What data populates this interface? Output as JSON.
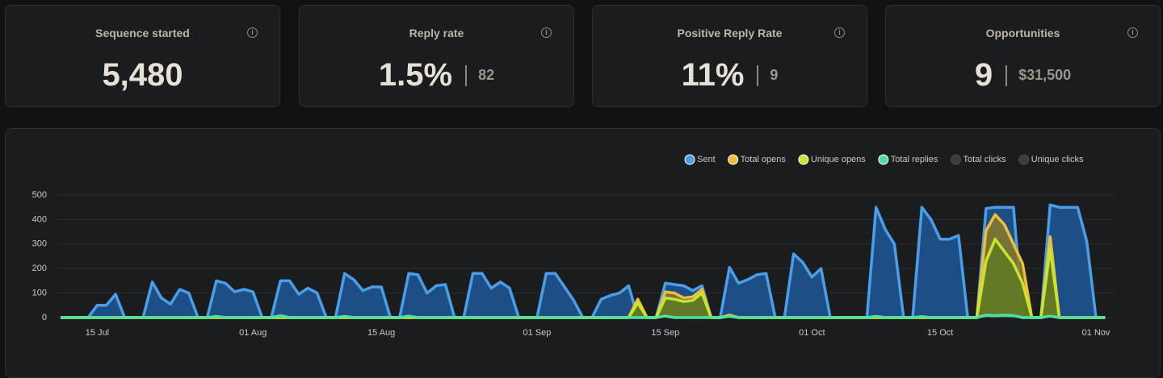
{
  "cards": [
    {
      "title": "Sequence started",
      "value": "5,480"
    },
    {
      "title": "Reply rate",
      "value": "1.5%",
      "secondary": "82"
    },
    {
      "title": "Positive Reply Rate",
      "value": "11%",
      "secondary": "9"
    },
    {
      "title": "Opportunities",
      "value": "9",
      "secondary": "$31,500"
    }
  ],
  "chart_data": {
    "type": "area",
    "categories": [
      null,
      null,
      null,
      null,
      "15 Jul",
      null,
      null,
      null,
      null,
      null,
      null,
      null,
      null,
      null,
      null,
      null,
      null,
      null,
      null,
      null,
      null,
      "01 Aug",
      null,
      null,
      null,
      null,
      null,
      null,
      null,
      null,
      null,
      null,
      null,
      null,
      null,
      "15 Aug",
      null,
      null,
      null,
      null,
      null,
      null,
      null,
      null,
      null,
      null,
      null,
      null,
      null,
      null,
      null,
      null,
      "01 Sep",
      null,
      null,
      null,
      null,
      null,
      null,
      null,
      null,
      null,
      null,
      null,
      null,
      null,
      "15 Sep",
      null,
      null,
      null,
      null,
      null,
      null,
      null,
      null,
      null,
      null,
      null,
      null,
      null,
      null,
      null,
      "01 Oct",
      null,
      null,
      null,
      null,
      null,
      null,
      null,
      null,
      null,
      null,
      null,
      null,
      null,
      "15 Oct",
      null,
      null,
      null,
      null,
      null,
      null,
      null,
      null,
      null,
      null,
      null,
      null,
      null,
      null,
      null,
      null,
      "01 Nov",
      null
    ],
    "series": [
      {
        "name": "Sent",
        "color": "#4a9ee8",
        "fill_color": "#1f5799",
        "values": [
          0,
          0,
          0,
          0,
          50,
          50,
          95,
          0,
          0,
          0,
          145,
          80,
          55,
          115,
          100,
          0,
          0,
          150,
          140,
          105,
          115,
          105,
          0,
          0,
          150,
          150,
          95,
          120,
          100,
          0,
          0,
          180,
          155,
          110,
          125,
          125,
          0,
          0,
          180,
          175,
          100,
          130,
          135,
          0,
          0,
          180,
          180,
          120,
          145,
          120,
          0,
          0,
          0,
          180,
          180,
          125,
          70,
          0,
          0,
          75,
          90,
          100,
          130,
          0,
          0,
          0,
          140,
          135,
          130,
          110,
          130,
          0,
          0,
          205,
          140,
          155,
          175,
          180,
          0,
          0,
          260,
          225,
          165,
          200,
          0,
          0,
          0,
          0,
          0,
          450,
          360,
          300,
          0,
          0,
          450,
          400,
          320,
          320,
          335,
          0,
          0,
          445,
          450,
          450,
          450,
          0,
          0,
          0,
          460,
          450,
          450,
          450,
          310,
          0,
          0
        ]
      },
      {
        "name": "Total opens",
        "color": "#f1bd3c",
        "fill_color": "#8a7a2a",
        "values": [
          0,
          0,
          0,
          0,
          0,
          0,
          0,
          0,
          0,
          0,
          0,
          0,
          0,
          0,
          0,
          0,
          0,
          0,
          0,
          0,
          0,
          0,
          0,
          0,
          0,
          0,
          0,
          0,
          0,
          0,
          0,
          0,
          0,
          0,
          0,
          0,
          0,
          0,
          0,
          0,
          0,
          0,
          0,
          0,
          0,
          0,
          0,
          0,
          0,
          0,
          0,
          0,
          0,
          0,
          0,
          0,
          0,
          0,
          0,
          0,
          0,
          0,
          0,
          75,
          0,
          0,
          105,
          100,
          80,
          85,
          115,
          0,
          0,
          10,
          0,
          0,
          0,
          0,
          0,
          0,
          0,
          0,
          0,
          0,
          0,
          0,
          0,
          0,
          0,
          0,
          0,
          0,
          0,
          0,
          0,
          0,
          0,
          0,
          0,
          0,
          0,
          355,
          420,
          380,
          300,
          220,
          0,
          0,
          330,
          0,
          0,
          0,
          0,
          0,
          0
        ]
      },
      {
        "name": "Unique opens",
        "color": "#c6e52f",
        "fill_color": "#5f7a22",
        "values": [
          0,
          0,
          0,
          0,
          0,
          0,
          0,
          0,
          0,
          0,
          0,
          0,
          0,
          0,
          0,
          0,
          0,
          0,
          0,
          0,
          0,
          0,
          0,
          0,
          0,
          0,
          0,
          0,
          0,
          0,
          0,
          0,
          0,
          0,
          0,
          0,
          0,
          0,
          0,
          0,
          0,
          0,
          0,
          0,
          0,
          0,
          0,
          0,
          0,
          0,
          0,
          0,
          0,
          0,
          0,
          0,
          0,
          0,
          0,
          0,
          0,
          0,
          0,
          60,
          0,
          0,
          80,
          75,
          65,
          70,
          100,
          0,
          0,
          8,
          0,
          0,
          0,
          0,
          0,
          0,
          0,
          0,
          0,
          0,
          0,
          0,
          0,
          0,
          0,
          0,
          0,
          0,
          0,
          0,
          0,
          0,
          0,
          0,
          0,
          0,
          0,
          230,
          320,
          270,
          220,
          140,
          0,
          0,
          280,
          0,
          0,
          0,
          0,
          0,
          0
        ]
      },
      {
        "name": "Total replies",
        "color": "#4fe0a0",
        "fill_color": "#2a6b52",
        "values": [
          0,
          0,
          0,
          0,
          0,
          0,
          0,
          0,
          0,
          0,
          0,
          0,
          0,
          0,
          0,
          0,
          0,
          5,
          0,
          0,
          0,
          0,
          0,
          0,
          8,
          0,
          0,
          0,
          0,
          0,
          0,
          5,
          0,
          0,
          0,
          0,
          0,
          0,
          6,
          0,
          0,
          0,
          0,
          0,
          0,
          0,
          0,
          0,
          0,
          0,
          0,
          0,
          0,
          0,
          0,
          0,
          0,
          0,
          0,
          0,
          0,
          0,
          0,
          0,
          0,
          0,
          6,
          0,
          0,
          0,
          0,
          0,
          0,
          5,
          0,
          0,
          0,
          0,
          0,
          0,
          0,
          0,
          0,
          0,
          0,
          0,
          0,
          0,
          0,
          5,
          0,
          0,
          0,
          0,
          4,
          0,
          0,
          0,
          0,
          0,
          0,
          10,
          8,
          10,
          8,
          0,
          0,
          0,
          6,
          0,
          0,
          0,
          0,
          0,
          0
        ]
      },
      {
        "name": "Total clicks",
        "color": "#3a3c40",
        "hidden": true
      },
      {
        "name": "Unique clicks",
        "color": "#3a3c40",
        "hidden": true
      }
    ],
    "ylim": [
      0,
      500
    ],
    "yticks": [
      0,
      100,
      200,
      300,
      400,
      500
    ],
    "grid": true
  }
}
